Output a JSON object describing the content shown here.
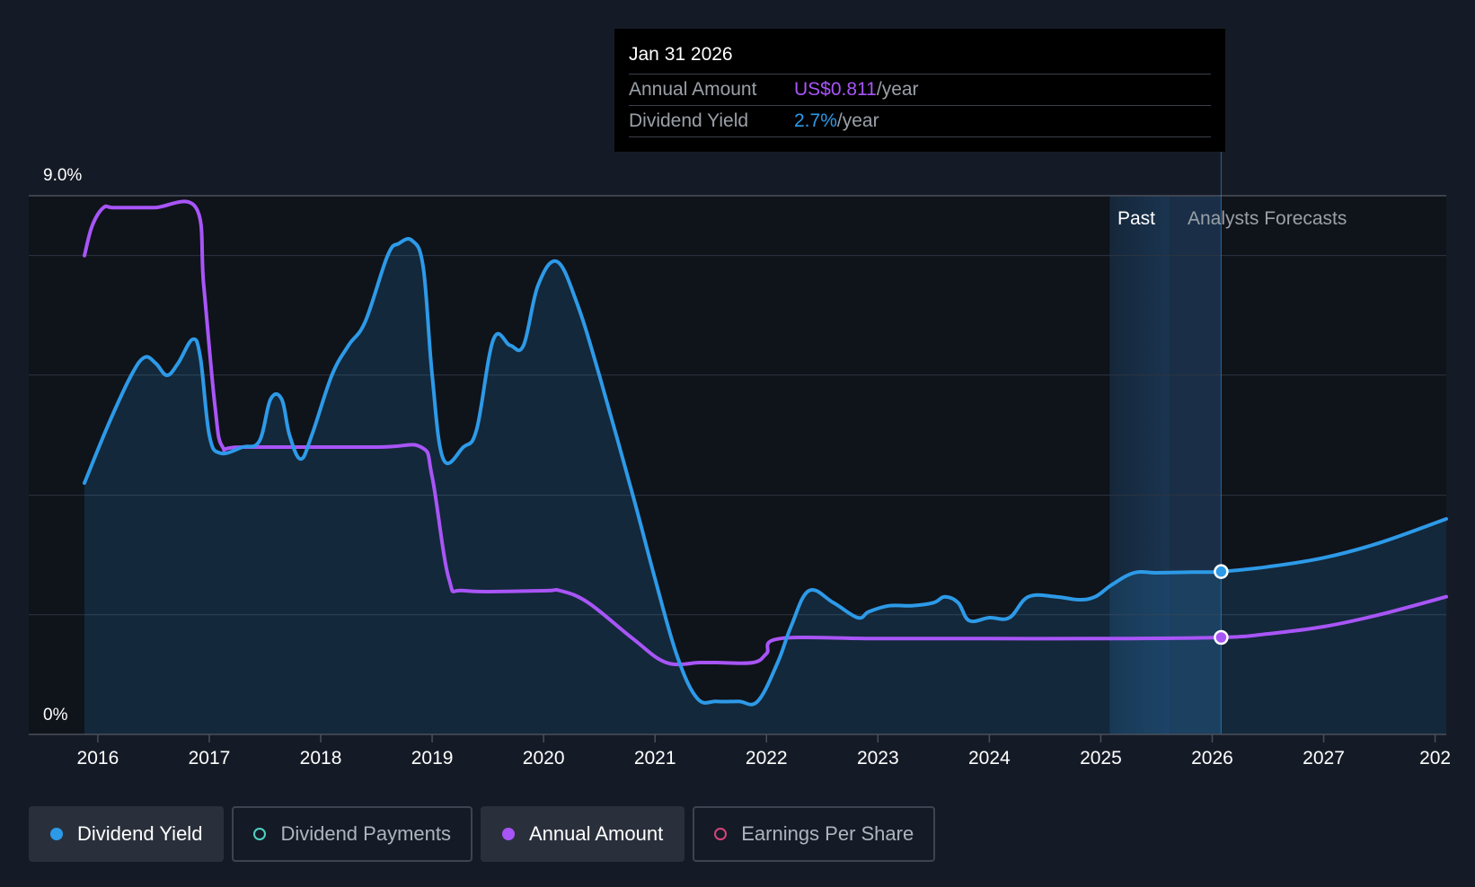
{
  "tooltip": {
    "date": "Jan 31 2026",
    "annual_label": "Annual Amount",
    "annual_value": "US$0.811",
    "yield_label": "Dividend Yield",
    "yield_value": "2.7%",
    "unit": "/year"
  },
  "legend": [
    {
      "label": "Dividend Yield",
      "color": "#2d9ae8",
      "active": true,
      "filled": true
    },
    {
      "label": "Dividend Payments",
      "color": "#4fd1c5",
      "active": false,
      "filled": false
    },
    {
      "label": "Annual Amount",
      "color": "#a855f7",
      "active": true,
      "filled": true
    },
    {
      "label": "Earnings Per Share",
      "color": "#d6447a",
      "active": false,
      "filled": false
    }
  ],
  "colors": {
    "background": "#151b26",
    "yield": "#2d9ae8",
    "annual": "#a855f7",
    "grid": "#2e3440",
    "forecast_band": "#1c3550"
  },
  "chart_data": {
    "type": "line",
    "y_tick_labels": [
      "9.0%",
      "0%"
    ],
    "ylim": [
      0,
      9.0
    ],
    "x_tick_labels": [
      "2016",
      "2017",
      "2018",
      "2019",
      "2020",
      "2021",
      "2022",
      "2023",
      "2024",
      "2025",
      "2026",
      "2027",
      "202"
    ],
    "xlim": [
      2015.38,
      2028.1
    ],
    "past_label": "Past",
    "forecast_label": "Analysts Forecasts",
    "past_band": [
      2025.08,
      2025.62
    ],
    "forecast_band_start": 2025.62,
    "forecast_start": 2026.08,
    "grid": true,
    "series": [
      {
        "name": "Dividend Yield",
        "color": "#2d9ae8",
        "fill": true,
        "points": [
          [
            2015.88,
            4.2
          ],
          [
            2016.1,
            5.2
          ],
          [
            2016.3,
            6.0
          ],
          [
            2016.42,
            6.3
          ],
          [
            2016.52,
            6.2
          ],
          [
            2016.62,
            6.0
          ],
          [
            2016.72,
            6.2
          ],
          [
            2016.85,
            6.6
          ],
          [
            2016.92,
            6.3
          ],
          [
            2017.0,
            5.0
          ],
          [
            2017.1,
            4.7
          ],
          [
            2017.3,
            4.8
          ],
          [
            2017.45,
            4.9
          ],
          [
            2017.55,
            5.6
          ],
          [
            2017.65,
            5.6
          ],
          [
            2017.72,
            5.0
          ],
          [
            2017.82,
            4.6
          ],
          [
            2017.92,
            5.0
          ],
          [
            2018.1,
            6.0
          ],
          [
            2018.25,
            6.5
          ],
          [
            2018.4,
            6.9
          ],
          [
            2018.6,
            8.0
          ],
          [
            2018.7,
            8.2
          ],
          [
            2018.82,
            8.25
          ],
          [
            2018.92,
            7.8
          ],
          [
            2019.0,
            6.0
          ],
          [
            2019.1,
            4.6
          ],
          [
            2019.28,
            4.8
          ],
          [
            2019.4,
            5.1
          ],
          [
            2019.55,
            6.6
          ],
          [
            2019.7,
            6.5
          ],
          [
            2019.82,
            6.5
          ],
          [
            2019.95,
            7.5
          ],
          [
            2020.12,
            7.9
          ],
          [
            2020.3,
            7.2
          ],
          [
            2020.5,
            6.0
          ],
          [
            2020.8,
            4.0
          ],
          [
            2021.0,
            2.6
          ],
          [
            2021.2,
            1.3
          ],
          [
            2021.38,
            0.6
          ],
          [
            2021.55,
            0.55
          ],
          [
            2021.75,
            0.55
          ],
          [
            2021.92,
            0.55
          ],
          [
            2022.1,
            1.2
          ],
          [
            2022.22,
            1.8
          ],
          [
            2022.38,
            2.4
          ],
          [
            2022.6,
            2.2
          ],
          [
            2022.82,
            1.95
          ],
          [
            2022.92,
            2.05
          ],
          [
            2023.1,
            2.15
          ],
          [
            2023.3,
            2.15
          ],
          [
            2023.5,
            2.2
          ],
          [
            2023.6,
            2.3
          ],
          [
            2023.72,
            2.2
          ],
          [
            2023.82,
            1.9
          ],
          [
            2024.0,
            1.95
          ],
          [
            2024.18,
            1.95
          ],
          [
            2024.35,
            2.3
          ],
          [
            2024.6,
            2.3
          ],
          [
            2024.8,
            2.25
          ],
          [
            2024.95,
            2.3
          ],
          [
            2025.1,
            2.5
          ],
          [
            2025.3,
            2.7
          ],
          [
            2025.5,
            2.7
          ],
          [
            2025.8,
            2.71
          ],
          [
            2026.08,
            2.72
          ],
          [
            2026.5,
            2.8
          ],
          [
            2027.0,
            2.95
          ],
          [
            2027.5,
            3.2
          ],
          [
            2028.1,
            3.6
          ]
        ]
      },
      {
        "name": "Annual Amount",
        "color": "#a855f7",
        "fill": false,
        "points": [
          [
            2015.88,
            8.0
          ],
          [
            2015.95,
            8.5
          ],
          [
            2016.05,
            8.8
          ],
          [
            2016.15,
            8.8
          ],
          [
            2016.5,
            8.8
          ],
          [
            2016.88,
            8.8
          ],
          [
            2016.95,
            7.5
          ],
          [
            2017.05,
            5.5
          ],
          [
            2017.12,
            4.8
          ],
          [
            2017.3,
            4.8
          ],
          [
            2018.5,
            4.8
          ],
          [
            2018.9,
            4.8
          ],
          [
            2019.0,
            4.3
          ],
          [
            2019.15,
            2.6
          ],
          [
            2019.3,
            2.4
          ],
          [
            2020.0,
            2.4
          ],
          [
            2020.15,
            2.4
          ],
          [
            2020.4,
            2.2
          ],
          [
            2020.8,
            1.6
          ],
          [
            2021.1,
            1.2
          ],
          [
            2021.4,
            1.2
          ],
          [
            2021.55,
            1.2
          ],
          [
            2021.88,
            1.2
          ],
          [
            2022.0,
            1.35
          ],
          [
            2022.12,
            1.6
          ],
          [
            2023.0,
            1.6
          ],
          [
            2024.0,
            1.6
          ],
          [
            2025.0,
            1.6
          ],
          [
            2026.08,
            1.62
          ],
          [
            2026.5,
            1.68
          ],
          [
            2027.0,
            1.8
          ],
          [
            2027.5,
            2.0
          ],
          [
            2028.1,
            2.3
          ]
        ]
      }
    ],
    "markers": [
      {
        "series": "Dividend Yield",
        "x": 2026.08,
        "y": 2.72
      },
      {
        "series": "Annual Amount",
        "x": 2026.08,
        "y": 1.62
      }
    ]
  }
}
